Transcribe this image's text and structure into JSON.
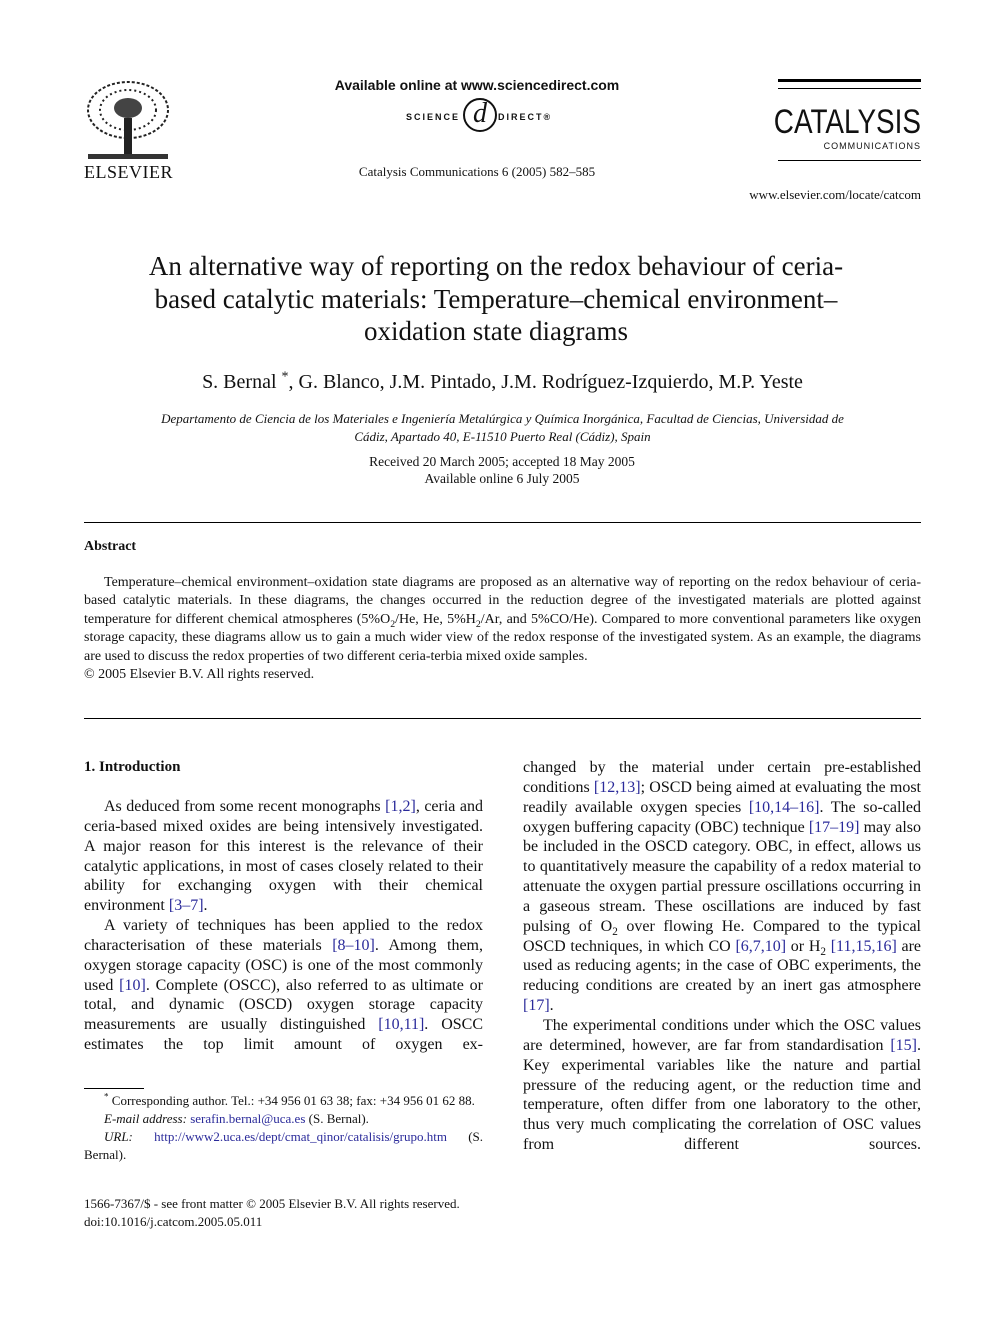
{
  "header": {
    "publisher": "ELSEVIER",
    "available_online": "Available online at www.sciencedirect.com",
    "sd_left": "SCIENCE",
    "sd_symbol": "d",
    "sd_right": "DIRECT®",
    "citation": "Catalysis Communications 6 (2005) 582–585",
    "journal_name": "CATALYSIS",
    "journal_sub": "COMMUNICATIONS",
    "journal_url": "www.elsevier.com/locate/catcom"
  },
  "article": {
    "title": "An alternative way of reporting on the redox behaviour of ceria-based catalytic materials: Temperature–chemical environment–oxidation state diagrams",
    "authors": [
      "S. Bernal ",
      {
        "sup": "*"
      },
      ", G. Blanco, J.M. Pintado, J.M. Rodríguez-Izquierdo, M.P. Yeste"
    ],
    "affiliation": "Departamento de Ciencia de los Materiales e Ingeniería Metalúrgica y Química Inorgánica, Facultad de Ciencias, Universidad de Cádiz, Apartado 40, E-11510 Puerto Real (Cádiz), Spain",
    "dates": [
      "Received 20 March 2005; accepted 18 May 2005",
      "Available online 6 July 2005"
    ]
  },
  "abstract": {
    "heading": "Abstract",
    "text": [
      "Temperature–chemical environment–oxidation state diagrams are proposed as an alternative way of reporting on the redox behaviour of ceria-based catalytic materials. In these diagrams, the changes occurred in the reduction degree of the investigated materials are plotted against temperature for different chemical atmospheres (5%O",
      {
        "sub": "2"
      },
      "/He, He, 5%H",
      {
        "sub": "2"
      },
      "/Ar, and 5%CO/He). Compared to more conventional parameters like oxygen storage capacity, these diagrams allow us to gain a much wider view of the redox response of the investigated system. As an example, the diagrams are used to discuss the redox properties of two different ceria-terbia mixed oxide samples."
    ],
    "copyright": "© 2005 Elsevier B.V. All rights reserved."
  },
  "body": {
    "heading": "1. Introduction",
    "left": [
      [
        "As deduced from some recent monographs ",
        {
          "ref": "[1,2]"
        },
        ", ceria and ceria-based mixed oxides are being intensively investigated. A major reason for this interest is the relevance of their catalytic applications, in most of cases closely related to their ability for exchanging oxygen with their chemical environment ",
        {
          "ref": "[3–7]"
        },
        "."
      ],
      [
        "A variety of techniques has been applied to the redox characterisation of these materials ",
        {
          "ref": "[8–10]"
        },
        ". Among them, oxygen storage capacity (OSC) is one of the most commonly used ",
        {
          "ref": "[10]"
        },
        ". Complete (OSCC), also referred to as ultimate or total, and dynamic (OSCD) oxygen storage capacity measurements are usually distinguished ",
        {
          "ref": "[10,11]"
        },
        ". OSCC estimates the top limit amount of oxygen ex-"
      ]
    ],
    "right": [
      [
        "changed by the material under certain pre-established conditions ",
        {
          "ref": "[12,13]"
        },
        "; OSCD being aimed at evaluating the most readily available oxygen species ",
        {
          "ref": "[10,14–16]"
        },
        ". The so-called oxygen buffering capacity (OBC) technique ",
        {
          "ref": "[17–19]"
        },
        " may also be included in the OSCD category. OBC, in effect, allows us to quantitatively measure the capability of a redox material to attenuate the oxygen partial pressure oscillations occurring in a gaseous stream. These oscillations are induced by fast pulsing of O",
        {
          "sub": "2"
        },
        " over flowing He. Compared to the typical OSCD techniques, in which CO ",
        {
          "ref": "[6,7,10]"
        },
        " or H",
        {
          "sub": "2"
        },
        " ",
        {
          "ref": "[11,15,16]"
        },
        " are used as reducing agents; in the case of OBC experiments, the reducing conditions are created by an inert gas atmosphere ",
        {
          "ref": "[17]"
        },
        "."
      ],
      [
        "The experimental conditions under which the OSC values are determined, however, are far from standardisation ",
        {
          "ref": "[15]"
        },
        ". Key experimental variables like the nature and partial pressure of the reducing agent, or the reduction time and temperature, often differ from one laboratory to the other, thus very much complicating the correlation of OSC values from different sources."
      ]
    ]
  },
  "footnotes": [
    [
      {
        "sup": "*"
      },
      " Corresponding author. Tel.: +34 956 01 63 38; fax: +34 956 01 62 88."
    ],
    [
      {
        "it": "E-mail address:"
      },
      " ",
      {
        "ref": "serafin.bernal@uca.es"
      },
      " (S. Bernal)."
    ],
    [
      {
        "it": "URL:"
      },
      " ",
      {
        "ref": "http://www2.uca.es/dept/cmat_qinor/catalisis/grupo.htm"
      },
      " (S. Bernal)."
    ]
  ],
  "footer": [
    "1566-7367/$ - see front matter © 2005 Elsevier B.V. All rights reserved.",
    "doi:10.1016/j.catcom.2005.05.011"
  ]
}
